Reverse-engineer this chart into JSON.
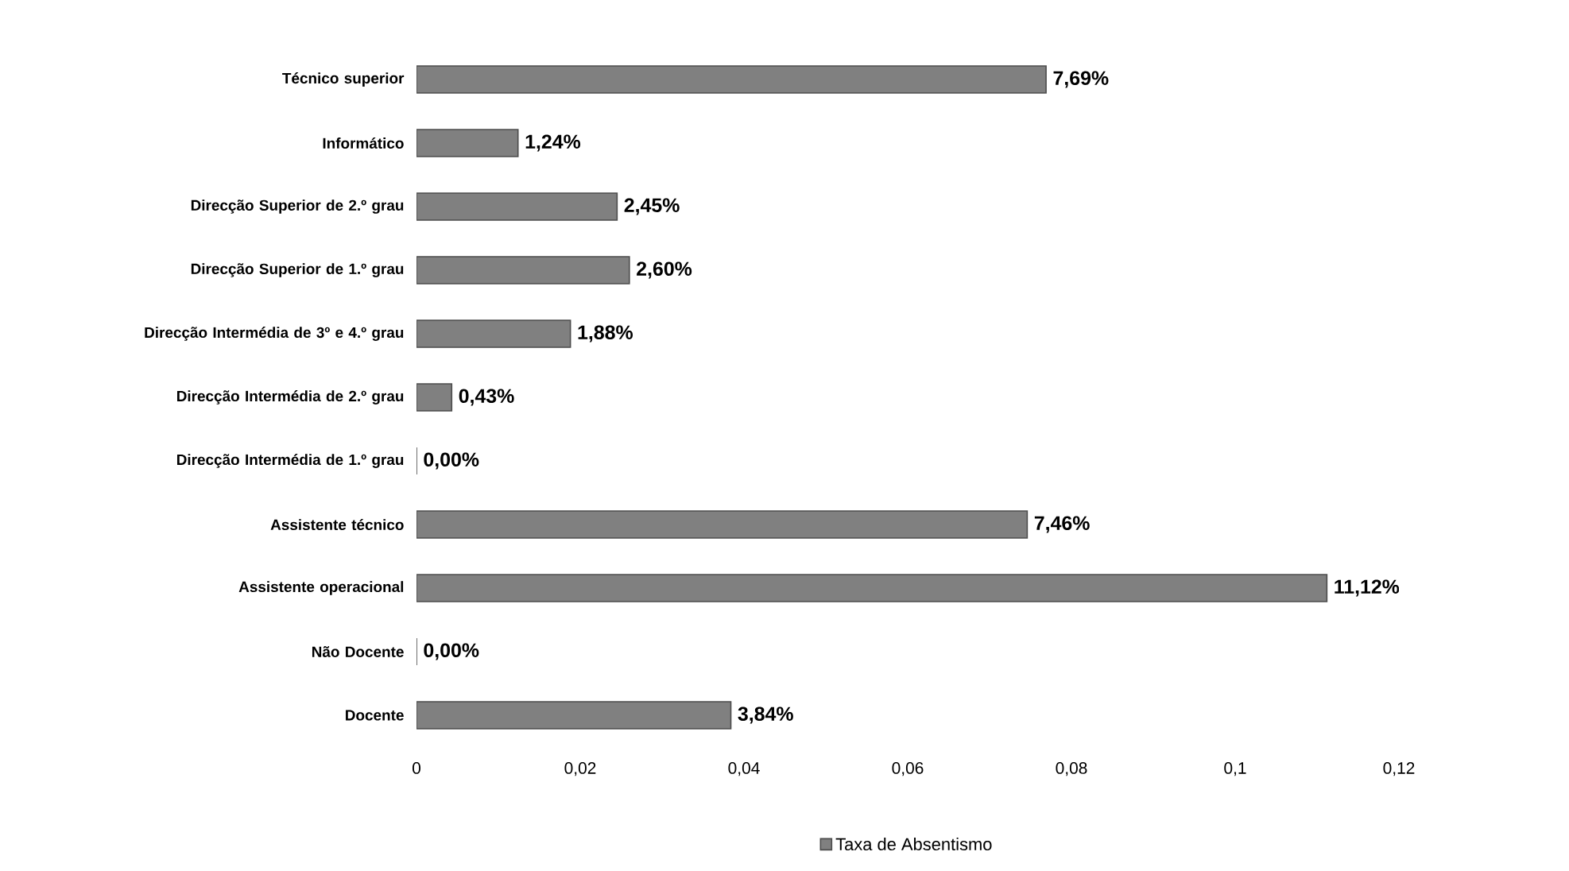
{
  "chart_data": {
    "type": "bar",
    "orientation": "horizontal",
    "categories": [
      "Técnico superior",
      "Informático",
      "Direcção Superior de 2.º grau",
      "Direcção Superior de 1.º grau",
      "Direcção Intermédia de 3º e 4.º grau",
      "Direcção Intermédia de 2.º grau",
      "Direcção Intermédia de 1.º grau",
      "Assistente técnico",
      "Assistente operacional",
      "Não Docente",
      "Docente"
    ],
    "series": [
      {
        "name": "Taxa de Absentismo",
        "color": "#808080",
        "values": [
          0.0769,
          0.0124,
          0.0245,
          0.026,
          0.0188,
          0.0043,
          0,
          0.0746,
          0.1112,
          0,
          0.0384
        ],
        "value_labels": [
          "7,69%",
          "1,24%",
          "2,45%",
          "2,60%",
          "1,88%",
          "0,43%",
          "0,00%",
          "7,46%",
          "11,12%",
          "0,00%",
          "3,84%"
        ]
      }
    ],
    "xlim": [
      0,
      0.12
    ],
    "xticks": [
      0,
      {
        "value": 0.02,
        "label": "0,02"
      },
      {
        "value": 0.04,
        "label": "0,04"
      },
      {
        "value": 0.06,
        "label": "0,06"
      },
      {
        "value": 0.08,
        "label": "0,08"
      },
      {
        "value": 0.1,
        "label": "0,1"
      },
      {
        "value": 0.12,
        "label": "0,12"
      }
    ],
    "legend": "bottom",
    "grid": false
  }
}
